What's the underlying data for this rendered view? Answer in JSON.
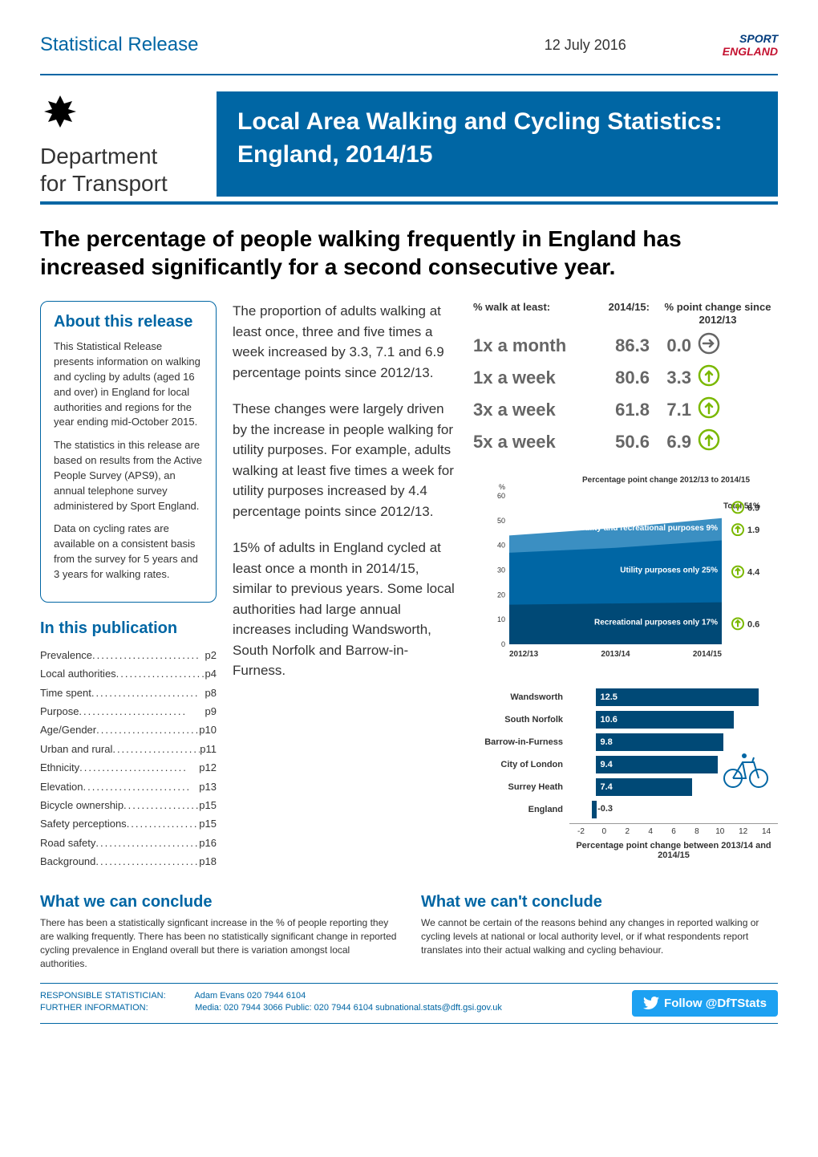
{
  "header": {
    "release_label": "Statistical Release",
    "date": "12 July 2016",
    "sport_logo_line1": "SPORT",
    "sport_logo_line2": "ENGLAND"
  },
  "dept": {
    "name_line1": "Department",
    "name_line2": "for Transport",
    "crest": "♔"
  },
  "title_banner": "Local Area Walking and Cycling Statistics: England, 2014/15",
  "main_headline": "The percentage of people walking frequently in England has increased significantly for a second consecutive year.",
  "about": {
    "title": "About this release",
    "p1": "This Statistical Release presents information on walking and cycling by adults (aged 16 and over) in England for local authorities and regions for the year ending mid-October 2015.",
    "p2": "The statistics in this release are based on results from the Active People Survey (APS9), an annual telephone survey administered by Sport England.",
    "p3": "Data on cycling rates are available on a consistent basis from the survey for 5 years and 3 years for walking rates."
  },
  "toc": {
    "title": "In this publication",
    "items": [
      {
        "label": "Prevalence",
        "page": "p2"
      },
      {
        "label": "Local authorities",
        "page": "p4"
      },
      {
        "label": "Time spent",
        "page": "p8"
      },
      {
        "label": "Purpose",
        "page": "p9"
      },
      {
        "label": "Age/Gender",
        "page": "p10"
      },
      {
        "label": "Urban and rural",
        "page": "p11"
      },
      {
        "label": "Ethnicity",
        "page": "p12"
      },
      {
        "label": "Elevation",
        "page": "p13"
      },
      {
        "label": "Bicycle ownership",
        "page": "p15"
      },
      {
        "label": "Safety perceptions",
        "page": "p15"
      },
      {
        "label": "Road safety",
        "page": "p16"
      },
      {
        "label": "Background",
        "page": "p18"
      }
    ]
  },
  "body": {
    "p1": "The proportion of adults walking at least once, three and five times a week increased by 3.3, 7.1 and 6.9 percentage points since 2012/13.",
    "p2": "These changes were largely driven by the increase in people walking for utility purposes. For example, adults walking at least five times a week for utility purposes increased by 4.4 percentage points since 2012/13.",
    "p3": "15% of adults in England cycled at least once a month in 2014/15, similar to previous years. Some local authorities had large annual increases including Wandsworth, South Norfolk and Barrow-in-Furness."
  },
  "stats": {
    "header_label": "% walk at least:",
    "header_year": "2014/15:",
    "header_change": "% point change since 2012/13",
    "rows": [
      {
        "label": "1x a month",
        "value": "86.3",
        "change": "0.0",
        "direction": "flat"
      },
      {
        "label": "1x a week",
        "value": "80.6",
        "change": "3.3",
        "direction": "up"
      },
      {
        "label": "3x a week",
        "value": "61.8",
        "change": "7.1",
        "direction": "up"
      },
      {
        "label": "5x a week",
        "value": "50.6",
        "change": "6.9",
        "direction": "up"
      }
    ],
    "colors": {
      "flat": "#666666",
      "up": "#7ab800"
    }
  },
  "area_chart": {
    "title": "Percentage point change 2012/13 to 2014/15",
    "ylabel": "%",
    "ylim": [
      0,
      60
    ],
    "ytick_step": 10,
    "x_categories": [
      "2012/13",
      "2013/14",
      "2014/15"
    ],
    "series": [
      {
        "name": "Recreational purposes only 17%",
        "color": "#004976",
        "values": [
          16,
          16.5,
          17
        ],
        "change": "0.6",
        "direction": "up"
      },
      {
        "name": "Utility purposes only 25%",
        "color": "#0066a4",
        "values": [
          37,
          39,
          42
        ],
        "change": "4.4",
        "direction": "up"
      },
      {
        "name": "Utility and recreational purposes 9%",
        "color": "#3b8fc2",
        "values": [
          44,
          47,
          51
        ],
        "change": "1.9",
        "direction": "up"
      }
    ],
    "total_label": "Total 51%",
    "total_change": "6.9",
    "background_color": "#ffffff",
    "label_fontsize": 11
  },
  "bar_chart": {
    "type": "bar",
    "categories": [
      "Wandsworth",
      "South Norfolk",
      "Barrow-in-Furness",
      "City of London",
      "Surrey Heath",
      "England"
    ],
    "values": [
      12.5,
      10.6,
      9.8,
      9.4,
      7.4,
      -0.3
    ],
    "bar_color": "#004976",
    "england_color": "#004976",
    "xlim": [
      -2,
      14
    ],
    "xtick_step": 2,
    "axis_title": "Percentage point change between 2013/14 and 2014/15",
    "label_fontsize": 11,
    "bike_icon": "🚴"
  },
  "conclude": {
    "can_title": "What we can conclude",
    "can_text": "There has been a statistically signficant increase in the % of people reporting they are walking frequently. There has been no statistically significant change in reported cycling prevalence in England overall but there is variation amongst local authorities.",
    "cant_title": "What we can't conclude",
    "cant_text": "We cannot be certain of the reasons behind any changes in reported walking or cycling levels at national or local authority level, or if what respondents report translates into their actual walking and cycling behaviour."
  },
  "footer": {
    "statistician_label": "RESPONSIBLE STATISTICIAN:",
    "statistician_value": "Adam Evans 020 7944 6104",
    "info_label": "FURTHER INFORMATION:",
    "info_value": "Media: 020 7944 3066  Public: 020 7944 6104  subnational.stats@dft.gsi.gov.uk",
    "twitter": "Follow @DfTStats"
  }
}
